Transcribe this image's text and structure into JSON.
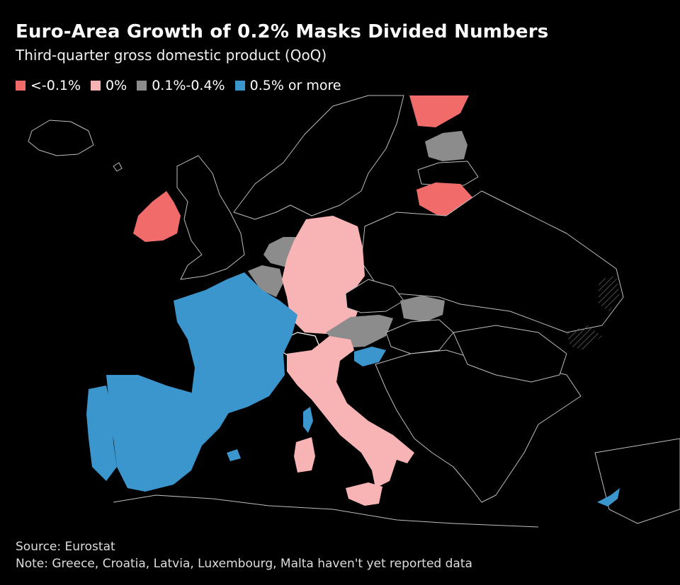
{
  "title": "Euro-Area Growth of 0.2% Masks Divided Numbers",
  "subtitle": "Third-quarter gross domestic product (QoQ)",
  "legend": [
    {
      "label": "<-0.1%",
      "color": "#f26b6b"
    },
    {
      "label": "0%",
      "color": "#f8b3b5"
    },
    {
      "label": "0.1%-0.4%",
      "color": "#8c8c8c"
    },
    {
      "label": "0.5% or more",
      "color": "#3a96cc"
    }
  ],
  "colors": {
    "negative": "#f26b6b",
    "zero": "#f8b3b5",
    "moderate": "#8c8c8c",
    "strong": "#3a96cc",
    "no_data": "#000000",
    "border": "#bdbdbd"
  },
  "map_data": {
    "type": "choropleth",
    "region": "Europe",
    "categories": {
      "<-0.1%": [
        "Ireland",
        "Lithuania",
        "Finland"
      ],
      "0%": [
        "Germany",
        "Italy"
      ],
      "0.1%-0.4%": [
        "Belgium",
        "Netherlands",
        "Austria",
        "Slovakia",
        "Estonia"
      ],
      "0.5% or more": [
        "France",
        "Spain",
        "Portugal",
        "Slovenia",
        "Cyprus"
      ]
    }
  },
  "source": "Source: Eurostat",
  "note": "Note: Greece, Croatia, Latvia, Luxembourg, Malta haven't yet reported data",
  "watermark": "❀ ❀ ❀ ❀ ❀"
}
